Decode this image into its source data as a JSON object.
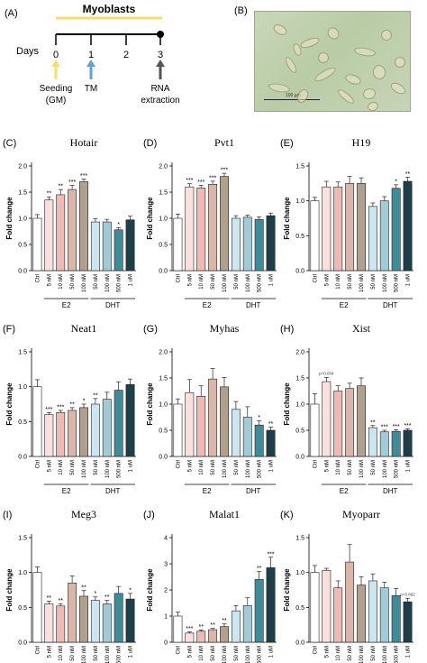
{
  "panel_a": {
    "label": "(A)",
    "title": "Myoblasts",
    "days_label": "Days",
    "ticks": [
      "0",
      "1",
      "2",
      "3"
    ],
    "events": [
      {
        "line1": "Seeding",
        "line2": "(GM)",
        "arrow_color": "#f4df6a"
      },
      {
        "line1": "TM",
        "line2": "",
        "arrow_color": "#5aa3dd"
      },
      {
        "line1": "RNA",
        "line2": "extraction",
        "arrow_color": "#555555"
      }
    ],
    "bar_color": "#f4df6a"
  },
  "panel_b": {
    "label": "(B)",
    "scale_text": "100 µm"
  },
  "chart_data": [
    {
      "panel": "(C)",
      "type": "bar",
      "title": "Hotair",
      "ylabel": "Fold change",
      "ylim": [
        0,
        2.0
      ],
      "yticks": [
        "0.0",
        "0.5",
        "1.0",
        "1.5",
        "2.0"
      ],
      "categories": [
        "Ctrl",
        "5 nM",
        "10 nM",
        "50 nM",
        "100 nM",
        "50 nM",
        "100 nM",
        "500 nM",
        "1 uM"
      ],
      "values": [
        1.0,
        1.35,
        1.45,
        1.55,
        1.7,
        0.93,
        0.93,
        0.78,
        0.97
      ],
      "errors": [
        0.07,
        0.06,
        0.1,
        0.08,
        0.05,
        0.06,
        0.05,
        0.04,
        0.07
      ],
      "stars": [
        "",
        "**",
        "**",
        "***",
        "***",
        "",
        "",
        "*",
        ""
      ],
      "groups": [
        {
          "name": "E2",
          "from": 1,
          "to": 4
        },
        {
          "name": "DHT",
          "from": 5,
          "to": 8
        }
      ]
    },
    {
      "panel": "(D)",
      "type": "bar",
      "title": "Pvt1",
      "ylabel": "Fold change",
      "ylim": [
        0,
        2.0
      ],
      "yticks": [
        "0.0",
        "0.5",
        "1.0",
        "1.5",
        "2.0"
      ],
      "categories": [
        "Ctrl",
        "5 nM",
        "10 nM",
        "50 nM",
        "100 nM",
        "50 nM",
        "100 nM",
        "500 nM",
        "1 uM"
      ],
      "values": [
        1.0,
        1.6,
        1.58,
        1.65,
        1.8,
        1.0,
        1.02,
        0.98,
        1.05
      ],
      "errors": [
        0.08,
        0.06,
        0.05,
        0.06,
        0.06,
        0.05,
        0.04,
        0.05,
        0.05
      ],
      "stars": [
        "",
        "***",
        "***",
        "***",
        "***",
        "",
        "",
        "",
        ""
      ],
      "groups": [
        {
          "name": "E2",
          "from": 1,
          "to": 4
        },
        {
          "name": "DHT",
          "from": 5,
          "to": 8
        }
      ]
    },
    {
      "panel": "(E)",
      "type": "bar",
      "title": "H19",
      "ylabel": "Fold change",
      "ylim": [
        0,
        1.5
      ],
      "yticks": [
        "0.0",
        "0.5",
        "1.0",
        "1.5"
      ],
      "categories": [
        "Ctrl",
        "5 nM",
        "10 nM",
        "50 nM",
        "100 nM",
        "50 nM",
        "100 nM",
        "500 nM",
        "1 uM"
      ],
      "values": [
        1.0,
        1.2,
        1.2,
        1.25,
        1.25,
        0.92,
        1.0,
        1.18,
        1.28
      ],
      "errors": [
        0.05,
        0.08,
        0.07,
        0.1,
        0.08,
        0.05,
        0.06,
        0.05,
        0.06
      ],
      "stars": [
        "",
        "",
        "",
        "",
        "",
        "",
        "",
        "*",
        "**"
      ],
      "groups": [
        {
          "name": "E2",
          "from": 1,
          "to": 4
        },
        {
          "name": "DHT",
          "from": 5,
          "to": 8
        }
      ]
    },
    {
      "panel": "(F)",
      "type": "bar",
      "title": "Neat1",
      "ylabel": "Fold change",
      "ylim": [
        0,
        1.5
      ],
      "yticks": [
        "0.0",
        "0.5",
        "1.0",
        "1.5"
      ],
      "categories": [
        "Ctrl",
        "5 nM",
        "10 nM",
        "50 nM",
        "100 nM",
        "50 nM",
        "100 nM",
        "500 nM",
        "1 uM"
      ],
      "values": [
        1.0,
        0.6,
        0.63,
        0.66,
        0.7,
        0.75,
        0.82,
        0.95,
        1.03
      ],
      "errors": [
        0.1,
        0.03,
        0.03,
        0.04,
        0.05,
        0.08,
        0.1,
        0.12,
        0.08
      ],
      "stars": [
        "",
        "***",
        "***",
        "**",
        "*",
        "**",
        "",
        "",
        ""
      ],
      "groups": [
        {
          "name": "E2",
          "from": 1,
          "to": 4
        },
        {
          "name": "DHT",
          "from": 5,
          "to": 8
        }
      ]
    },
    {
      "panel": "(G)",
      "type": "bar",
      "title": "Myhas",
      "ylabel": "Fold change",
      "ylim": [
        0,
        2.0
      ],
      "yticks": [
        "0.0",
        "0.5",
        "1.0",
        "1.5",
        "2.0"
      ],
      "categories": [
        "Ctrl",
        "5 nM",
        "10 nM",
        "50 nM",
        "100 nM",
        "50 nM",
        "100 nM",
        "500 nM",
        "1 uM"
      ],
      "values": [
        1.0,
        1.22,
        1.15,
        1.48,
        1.33,
        0.9,
        0.75,
        0.6,
        0.5
      ],
      "errors": [
        0.1,
        0.25,
        0.2,
        0.2,
        0.18,
        0.15,
        0.2,
        0.08,
        0.06
      ],
      "stars": [
        "",
        "",
        "",
        "",
        "",
        "",
        "",
        "*",
        "**"
      ],
      "groups": [
        {
          "name": "E2",
          "from": 1,
          "to": 4
        },
        {
          "name": "DHT",
          "from": 5,
          "to": 8
        }
      ]
    },
    {
      "panel": "(H)",
      "type": "bar",
      "title": "Xist",
      "ylabel": "Fold change",
      "ylim": [
        0,
        2.0
      ],
      "yticks": [
        "0.0",
        "0.5",
        "1.0",
        "1.5",
        "2.0"
      ],
      "categories": [
        "Ctrl",
        "5 nM",
        "10 nM",
        "50 nM",
        "100 nM",
        "50 nM",
        "100 nM",
        "500 nM",
        "1 uM"
      ],
      "values": [
        1.0,
        1.43,
        1.25,
        1.3,
        1.35,
        0.55,
        0.47,
        0.48,
        0.5
      ],
      "errors": [
        0.2,
        0.08,
        0.1,
        0.1,
        0.15,
        0.04,
        0.03,
        0.03,
        0.03
      ],
      "stars": [
        "",
        "",
        "",
        "",
        "",
        "**",
        "***",
        "***",
        "***"
      ],
      "notes": [
        "",
        "p=0.054",
        "",
        "",
        "",
        "",
        "",
        "",
        ""
      ],
      "groups": [
        {
          "name": "E2",
          "from": 1,
          "to": 4
        },
        {
          "name": "DHT",
          "from": 5,
          "to": 8
        }
      ]
    },
    {
      "panel": "(I)",
      "type": "bar",
      "title": "Meg3",
      "ylabel": "Fold change",
      "ylim": [
        0,
        1.5
      ],
      "yticks": [
        "0.0",
        "0.5",
        "1.0",
        "1.5"
      ],
      "categories": [
        "Ctrl",
        "5 nM",
        "10 nM",
        "50 nM",
        "100 nM",
        "50 nM",
        "100 nM",
        "500 nM",
        "1 uM"
      ],
      "values": [
        1.0,
        0.55,
        0.52,
        0.85,
        0.66,
        0.6,
        0.55,
        0.7,
        0.62
      ],
      "errors": [
        0.08,
        0.04,
        0.03,
        0.1,
        0.08,
        0.05,
        0.05,
        0.1,
        0.08
      ],
      "stars": [
        "",
        "**",
        "**",
        "",
        "**",
        "*",
        "**",
        "",
        "*"
      ],
      "groups": [
        {
          "name": "E2",
          "from": 1,
          "to": 4
        },
        {
          "name": "DHT",
          "from": 5,
          "to": 8
        }
      ]
    },
    {
      "panel": "(J)",
      "type": "bar",
      "title": "Malat1",
      "ylabel": "Fold change",
      "ylim": [
        0,
        4
      ],
      "yticks": [
        "0",
        "1",
        "2",
        "3",
        "4"
      ],
      "categories": [
        "Ctrl",
        "5 nM",
        "10 nM",
        "50 nM",
        "100 nM",
        "50 nM",
        "100 nM",
        "500 nM",
        "1 uM"
      ],
      "values": [
        1.0,
        0.35,
        0.42,
        0.48,
        0.6,
        1.2,
        1.4,
        2.4,
        2.85
      ],
      "errors": [
        0.15,
        0.05,
        0.05,
        0.05,
        0.1,
        0.2,
        0.3,
        0.3,
        0.4
      ],
      "stars": [
        "",
        "***",
        "**",
        "**",
        "**",
        "",
        "",
        "**",
        "***"
      ],
      "groups": [
        {
          "name": "E2",
          "from": 1,
          "to": 4
        },
        {
          "name": "DHT",
          "from": 5,
          "to": 8
        }
      ]
    },
    {
      "panel": "(K)",
      "type": "bar",
      "title": "Myoparr",
      "ylabel": "Fold change",
      "ylim": [
        0,
        1.5
      ],
      "yticks": [
        "0.0",
        "0.5",
        "1.0",
        "1.5"
      ],
      "categories": [
        "Ctrl",
        "5 nM",
        "10 nM",
        "50 nM",
        "100 nM",
        "50 nM",
        "100 nM",
        "500 nM",
        "1 uM"
      ],
      "values": [
        1.0,
        1.03,
        0.78,
        1.15,
        0.82,
        0.88,
        0.78,
        0.67,
        0.58
      ],
      "errors": [
        0.1,
        0.03,
        0.1,
        0.25,
        0.12,
        0.1,
        0.08,
        0.1,
        0.05
      ],
      "stars": [
        "",
        "",
        "",
        "",
        "",
        "",
        "",
        "",
        ""
      ],
      "notes": [
        "",
        "",
        "",
        "",
        "",
        "",
        "",
        "",
        "p=0.062"
      ],
      "groups": [
        {
          "name": "E2",
          "from": 1,
          "to": 4
        },
        {
          "name": "DHT",
          "from": 5,
          "to": 8
        }
      ]
    }
  ],
  "bar_colors": [
    "#ffffff",
    "#f8e0de",
    "#efb9b4",
    "#d9b6a8",
    "#b2a08f",
    "#cbe6ef",
    "#9fcad6",
    "#3d8c99",
    "#1e3f47"
  ]
}
